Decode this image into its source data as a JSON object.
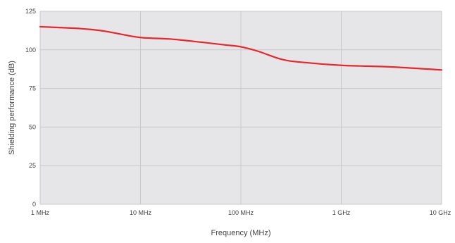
{
  "chart_data": {
    "type": "line",
    "title": "",
    "xlabel": "Frequency (MHz)",
    "ylabel": "Shielding performance (dB)",
    "x_scale": "log",
    "xlim": [
      1,
      10000
    ],
    "ylim": [
      0,
      125
    ],
    "grid": true,
    "x_ticks": [
      {
        "value": 1,
        "label": "1 MHz"
      },
      {
        "value": 10,
        "label": "10 MHz"
      },
      {
        "value": 100,
        "label": "100 MHz"
      },
      {
        "value": 1000,
        "label": "1 GHz"
      },
      {
        "value": 10000,
        "label": "10 GHz"
      }
    ],
    "y_ticks": [
      {
        "value": 0,
        "label": "0"
      },
      {
        "value": 25,
        "label": "25"
      },
      {
        "value": 50,
        "label": "50"
      },
      {
        "value": 75,
        "label": "75"
      },
      {
        "value": 100,
        "label": "100"
      },
      {
        "value": 125,
        "label": "125"
      }
    ],
    "series": [
      {
        "color": "#e8262b",
        "x": [
          1,
          1.5,
          2.5,
          4,
          6,
          10,
          20,
          40,
          70,
          100,
          150,
          250,
          400,
          1000,
          3000,
          10000
        ],
        "y": [
          115,
          114.5,
          113.8,
          112.5,
          110.5,
          108,
          107,
          105,
          103.2,
          102,
          99,
          94,
          92,
          90,
          89,
          87
        ]
      }
    ],
    "plot_background": "#e6e6e8",
    "grid_color": "#c9c9cb"
  }
}
